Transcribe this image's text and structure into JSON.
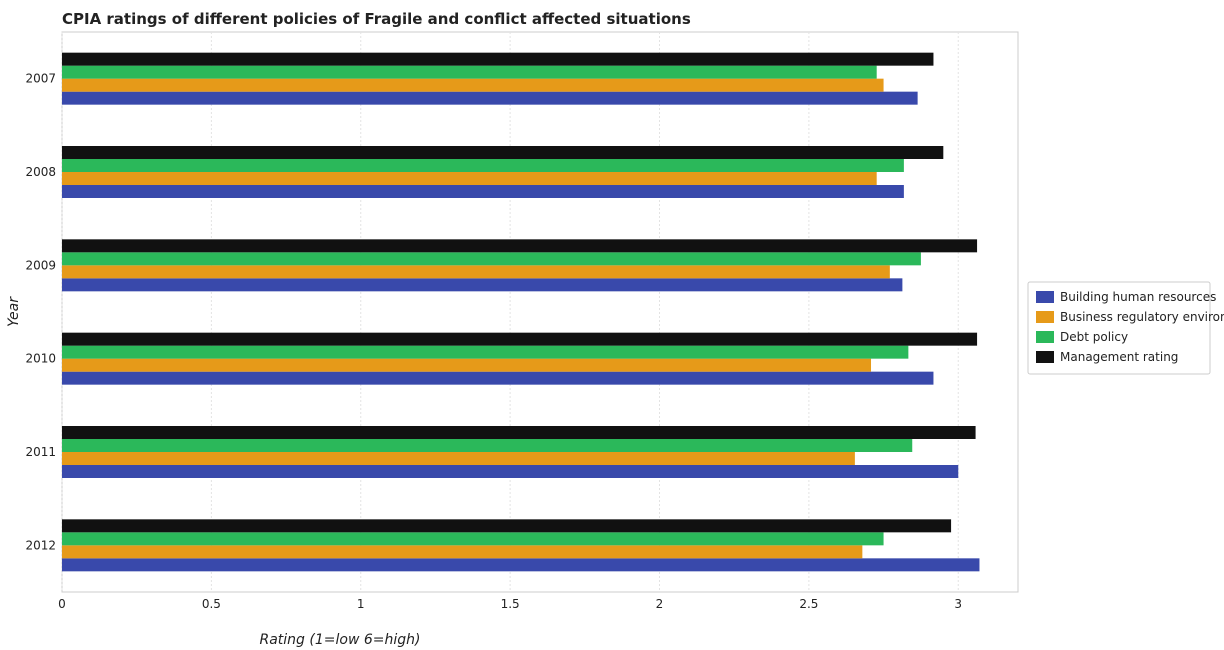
{
  "chart_data": {
    "type": "bar",
    "orientation": "horizontal",
    "title": "CPIA ratings of different policies of Fragile and conflict affected situations",
    "xlabel": "Rating (1=low 6=high)",
    "ylabel": "Year",
    "xlim": [
      0,
      3.2
    ],
    "xticks": [
      "0",
      "0.5",
      "1",
      "1.5",
      "2",
      "2.5",
      "3"
    ],
    "grid": true,
    "legend_position": "right",
    "categories": [
      "2007",
      "2008",
      "2009",
      "2010",
      "2011",
      "2012"
    ],
    "series": [
      {
        "name": "Building human resources",
        "color": "#3949ab",
        "values": [
          2.864,
          2.818,
          2.813,
          2.917,
          3.0,
          3.071
        ]
      },
      {
        "name": "Business regulatory environment",
        "color": "#e69a19",
        "values": [
          2.75,
          2.727,
          2.771,
          2.708,
          2.654,
          2.679
        ]
      },
      {
        "name": "Debt policy",
        "color": "#2bb85a",
        "values": [
          2.727,
          2.818,
          2.875,
          2.833,
          2.846,
          2.75
        ]
      },
      {
        "name": "Management rating",
        "color": "#111111",
        "values": [
          2.917,
          2.95,
          3.063,
          3.063,
          3.058,
          2.976
        ]
      }
    ]
  }
}
